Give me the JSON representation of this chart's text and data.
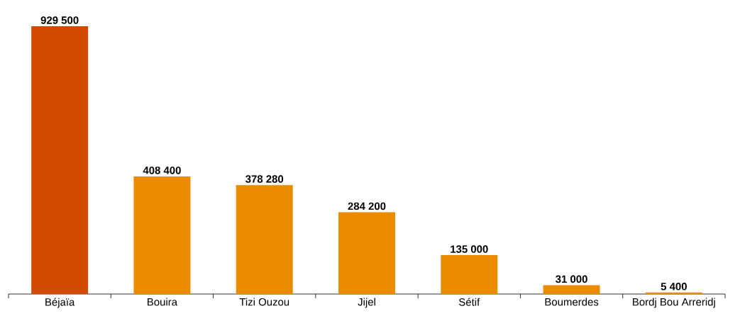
{
  "chart_data": {
    "type": "bar",
    "categories": [
      "Béjaïa",
      "Bouira",
      "Tizi Ouzou",
      "Jijel",
      "Sétif",
      "Boumerdes",
      "Bordj Bou Arreridj"
    ],
    "values": [
      929500,
      408400,
      378280,
      284200,
      135000,
      31000,
      5400
    ],
    "value_labels": [
      "929 500",
      "408 400",
      "378 280",
      "284 200",
      "135 000",
      "31 000",
      "5 400"
    ],
    "colors": [
      "#d24a00",
      "#eb8c00",
      "#eb8c00",
      "#eb8c00",
      "#eb8c00",
      "#eb8c00",
      "#eb8c00"
    ]
  }
}
